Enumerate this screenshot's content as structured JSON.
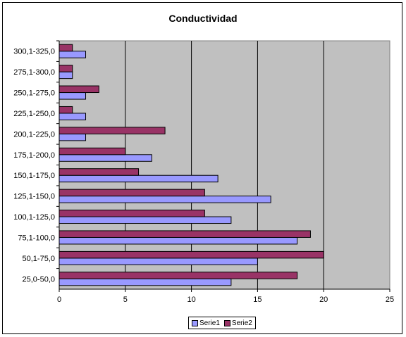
{
  "chart_data": {
    "type": "bar",
    "orientation": "horizontal",
    "title": "Conductividad",
    "xlabel": "",
    "ylabel": "",
    "categories": [
      "25,0-50,0",
      "50,1-75,0",
      "75,1-100,0",
      "100,1-125,0",
      "125,1-150,0",
      "150,1-175,0",
      "175,1-200,0",
      "200,1-225,0",
      "225,1-250,0",
      "250,1-275,0",
      "275,1-300,0",
      "300,1-325,0"
    ],
    "series": [
      {
        "name": "Serie1",
        "color": "#9999ff",
        "values": [
          13,
          15,
          18,
          13,
          16,
          12,
          7,
          2,
          2,
          2,
          1,
          2
        ]
      },
      {
        "name": "Serie2",
        "color": "#993366",
        "values": [
          18,
          20,
          19,
          11,
          11,
          6,
          5,
          8,
          1,
          3,
          1,
          1
        ]
      }
    ],
    "xlim": [
      0,
      25
    ],
    "xticks": [
      "0",
      "5",
      "10",
      "15",
      "20",
      "25"
    ],
    "grid": true,
    "plot_background": "#c0c0c0",
    "legend_position": "bottom"
  }
}
